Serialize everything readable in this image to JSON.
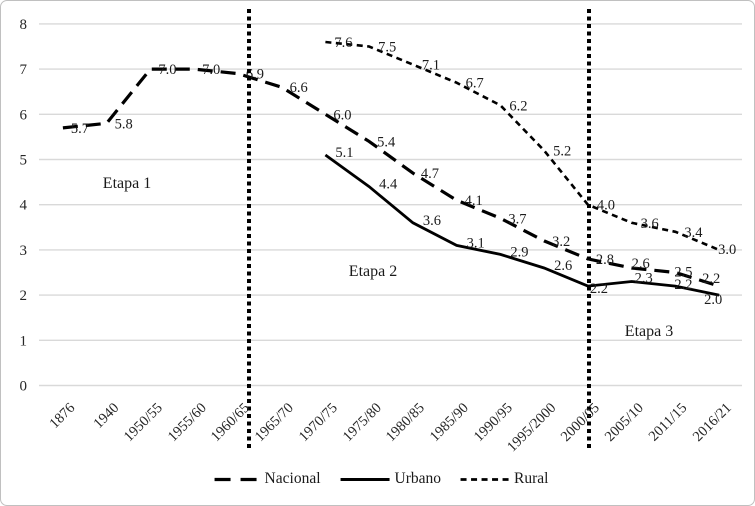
{
  "chart_data": {
    "type": "line",
    "title": "",
    "xlabel": "",
    "ylabel": "",
    "categories": [
      "1876",
      "1940",
      "1950/55",
      "1955/60",
      "1960/65",
      "1965/70",
      "1970/75",
      "1975/80",
      "1980/85",
      "1985/90",
      "1990/95",
      "1995/2000",
      "2000/05",
      "2005/10",
      "2011/15",
      "2016/21"
    ],
    "series": [
      {
        "name": "Nacional",
        "line_style": "long-dash",
        "color": "#000000",
        "values": [
          5.7,
          5.8,
          7.0,
          7.0,
          6.9,
          6.6,
          6.0,
          5.4,
          4.7,
          4.1,
          3.7,
          3.2,
          2.8,
          2.6,
          2.5,
          2.2
        ]
      },
      {
        "name": "Urbano",
        "line_style": "solid",
        "color": "#000000",
        "values": [
          null,
          null,
          null,
          null,
          null,
          null,
          5.1,
          4.4,
          3.6,
          3.1,
          2.9,
          2.6,
          2.2,
          2.3,
          2.2,
          2.0
        ]
      },
      {
        "name": "Rural",
        "line_style": "short-dash",
        "color": "#000000",
        "values": [
          null,
          null,
          null,
          null,
          null,
          null,
          7.6,
          7.5,
          7.1,
          6.7,
          6.2,
          5.2,
          4.0,
          3.6,
          3.4,
          3.0
        ]
      }
    ],
    "ylim": [
      0,
      8
    ],
    "yticks": [
      0,
      1,
      2,
      3,
      4,
      5,
      6,
      7,
      8
    ],
    "grid": true,
    "gridline_color": "#d9d9d9",
    "value_labels": true,
    "legend_position": "bottom",
    "annotations": [
      {
        "text": "Etapa 1"
      },
      {
        "text": "Etapa 2"
      },
      {
        "text": "Etapa 3"
      }
    ],
    "dividers": {
      "style": "dotted-vertical",
      "between": [
        [
          "1960/65",
          "1965/70"
        ],
        [
          "2000/05",
          "2005/10"
        ]
      ]
    }
  }
}
